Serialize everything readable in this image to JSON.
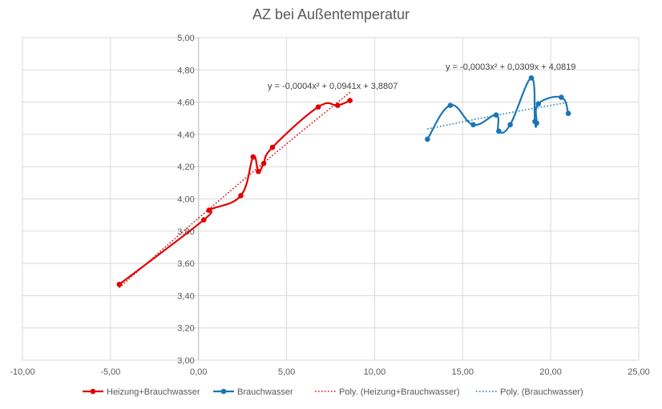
{
  "chart_data": {
    "type": "scatter",
    "title": "AZ bei Außentemperatur",
    "xlabel": "",
    "ylabel": "",
    "xlim": [
      -10,
      25
    ],
    "ylim": [
      3.0,
      5.0
    ],
    "x_ticks": [
      "-10,00",
      "-5,00",
      "0,00",
      "5,00",
      "10,00",
      "15,00",
      "20,00",
      "25,00"
    ],
    "y_ticks": [
      "3,00",
      "3,20",
      "3,40",
      "3,60",
      "3,80",
      "4,00",
      "4,20",
      "4,40",
      "4,60",
      "4,80",
      "5,00"
    ],
    "grid": true,
    "legend_position": "bottom",
    "series": [
      {
        "name": "Heizung+Brauchwasser",
        "color": "#e00000",
        "style": "smooth-line-with-markers",
        "points": [
          [
            -4.5,
            3.47
          ],
          [
            0.3,
            3.87
          ],
          [
            0.6,
            3.93
          ],
          [
            2.4,
            4.02
          ],
          [
            3.1,
            4.26
          ],
          [
            3.4,
            4.17
          ],
          [
            3.7,
            4.22
          ],
          [
            4.2,
            4.32
          ],
          [
            6.8,
            4.57
          ],
          [
            7.9,
            4.58
          ],
          [
            8.6,
            4.61
          ]
        ]
      },
      {
        "name": "Brauchwasser",
        "color": "#1a75b8",
        "style": "smooth-line-with-markers",
        "points": [
          [
            13.0,
            4.37
          ],
          [
            14.3,
            4.58
          ],
          [
            15.6,
            4.46
          ],
          [
            16.9,
            4.52
          ],
          [
            17.05,
            4.42
          ],
          [
            17.7,
            4.46
          ],
          [
            18.9,
            4.75
          ],
          [
            19.1,
            4.48
          ],
          [
            19.2,
            4.47
          ],
          [
            19.3,
            4.59
          ],
          [
            20.6,
            4.63
          ],
          [
            21.0,
            4.53
          ]
        ]
      }
    ],
    "trendlines": [
      {
        "name": "Poly. (Heizung+Brauchwasser)",
        "color": "#e00000",
        "equation": "y = -0,0004x² + 0,0941x + 3,8807",
        "coef": [
          -0.0004,
          0.0941,
          3.8807
        ],
        "x_range": [
          -4.5,
          8.6
        ]
      },
      {
        "name": "Poly. (Brauchwasser)",
        "color": "#1a75b8",
        "equation": "y = -0,0003x² + 0,0309x + 4,0819",
        "coef": [
          -0.0003,
          0.0309,
          4.0819
        ],
        "x_range": [
          13.0,
          21.0
        ]
      }
    ]
  }
}
